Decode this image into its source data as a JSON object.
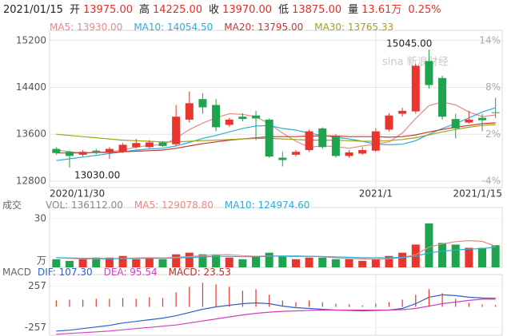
{
  "header": {
    "date": "2021/01/15",
    "value_color": "#e0302a",
    "items": [
      {
        "label": "开",
        "value": "13975.00"
      },
      {
        "label": "高",
        "value": "14225.00"
      },
      {
        "label": "收",
        "value": "13970.00"
      },
      {
        "label": "低",
        "value": "13875.00"
      },
      {
        "label": "量",
        "value": "13.61万"
      }
    ],
    "change": "0.25%"
  },
  "watermark": "sina 新浪财经",
  "up_color": "#e8352d",
  "down_color": "#1ea34e",
  "chart_data": [
    {
      "type": "candlestick",
      "categories": [
        "2020/11/30",
        null,
        null,
        null,
        null,
        null,
        null,
        null,
        null,
        null,
        null,
        null,
        null,
        null,
        null,
        null,
        null,
        null,
        null,
        null,
        null,
        null,
        null,
        null,
        "2021/1",
        null,
        null,
        null,
        null,
        null,
        null,
        null,
        null,
        "2021/1/15"
      ],
      "open": [
        13350,
        13300,
        13250,
        13320,
        13300,
        13300,
        13380,
        13380,
        13460,
        13430,
        13850,
        14200,
        14100,
        13760,
        13900,
        13920,
        13850,
        13200,
        13250,
        13330,
        13700,
        13560,
        13230,
        13270,
        13320,
        13680,
        13950,
        13990,
        14850,
        14560,
        13860,
        13800,
        13880,
        13975
      ],
      "close": [
        13280,
        13230,
        13300,
        13300,
        13350,
        13420,
        13450,
        13460,
        13400,
        13900,
        14130,
        14060,
        13720,
        13850,
        13860,
        13870,
        13220,
        13160,
        13300,
        13650,
        13380,
        13230,
        13290,
        13330,
        13650,
        13920,
        14000,
        14770,
        14440,
        13900,
        13700,
        13850,
        13840,
        13970
      ],
      "high": [
        13380,
        13320,
        13330,
        13350,
        13380,
        13450,
        13520,
        13500,
        13480,
        14100,
        14330,
        14300,
        14200,
        13880,
        13960,
        14000,
        13870,
        13300,
        13330,
        13680,
        13720,
        13600,
        13330,
        13380,
        13700,
        13960,
        14050,
        14800,
        15045,
        14600,
        13950,
        14000,
        13950,
        14225
      ],
      "low": [
        13250,
        13030,
        13220,
        13260,
        13180,
        13280,
        13360,
        13360,
        13380,
        13400,
        13800,
        13950,
        13650,
        13730,
        13820,
        13500,
        13200,
        13050,
        13220,
        13300,
        13350,
        13200,
        13200,
        13250,
        13300,
        13650,
        13900,
        13950,
        14380,
        13850,
        13530,
        13780,
        13650,
        13875
      ],
      "max_label": "15045.00",
      "min_label": "13030.00",
      "series": [
        {
          "name": "MA5: 13930.00",
          "type": "line",
          "color": "#e58a8a",
          "values": [
            13330,
            13300,
            13280,
            13290,
            13300,
            13330,
            13380,
            13410,
            13420,
            13530,
            13680,
            13790,
            13880,
            13950,
            13940,
            13900,
            13780,
            13620,
            13480,
            13380,
            13400,
            13390,
            13360,
            13400,
            13430,
            13470,
            13620,
            13870,
            14090,
            14150,
            14100,
            13980,
            13900,
            13930
          ]
        },
        {
          "name": "MA10: 14054.50",
          "type": "line",
          "color": "#2aaed6",
          "values": [
            13150,
            13180,
            13210,
            13240,
            13270,
            13300,
            13330,
            13350,
            13360,
            13400,
            13460,
            13530,
            13580,
            13640,
            13700,
            13740,
            13750,
            13700,
            13670,
            13620,
            13580,
            13550,
            13520,
            13480,
            13430,
            13420,
            13430,
            13490,
            13600,
            13700,
            13780,
            13880,
            13980,
            14054.5
          ]
        },
        {
          "name": "MA20: 13795.00",
          "type": "line",
          "color": "#c8372f",
          "values": [
            13280,
            13280,
            13280,
            13290,
            13290,
            13300,
            13310,
            13320,
            13330,
            13360,
            13400,
            13440,
            13470,
            13500,
            13520,
            13540,
            13560,
            13560,
            13560,
            13570,
            13570,
            13570,
            13560,
            13560,
            13560,
            13550,
            13560,
            13590,
            13640,
            13680,
            13720,
            13750,
            13780,
            13795
          ]
        },
        {
          "name": "MA30: 13765.33",
          "type": "line",
          "color": "#a3a21c",
          "values": [
            13600,
            13580,
            13560,
            13540,
            13520,
            13500,
            13490,
            13480,
            13470,
            13470,
            13480,
            13490,
            13500,
            13510,
            13520,
            13530,
            13530,
            13520,
            13510,
            13500,
            13500,
            13500,
            13490,
            13480,
            13480,
            13490,
            13510,
            13540,
            13590,
            13640,
            13680,
            13720,
            13750,
            13765.33
          ]
        }
      ],
      "ylim": [
        12690,
        15320
      ],
      "yticks": [
        15200,
        14400,
        13600,
        12800
      ],
      "y2lim": [
        -4.8,
        14.9
      ],
      "y2ticks": [
        {
          "value": 14,
          "label": "14%"
        },
        {
          "value": 8,
          "label": "8%"
        },
        {
          "value": 2,
          "label": "2%"
        },
        {
          "value": -4,
          "label": "-4%"
        }
      ],
      "grid": true
    },
    {
      "type": "combo",
      "title": "成交",
      "y_unit": "万",
      "series": [
        {
          "name": "VOL: 136112.00",
          "type": "bar",
          "color": "#888888",
          "values": [
            5,
            4,
            5,
            6,
            6,
            7,
            5,
            6,
            5,
            8,
            9,
            8,
            8,
            6,
            5,
            7,
            9,
            7,
            5,
            6,
            6,
            5,
            5,
            4,
            5,
            7,
            9,
            14,
            27,
            15,
            14,
            12,
            12,
            13.6112
          ]
        },
        {
          "name": "MA5: 129078.80",
          "type": "line",
          "color": "#e58a8a",
          "values": [
            6,
            5.5,
            5.2,
            5.2,
            5.2,
            5.6,
            5.8,
            6,
            5.8,
            6.2,
            6.6,
            7.2,
            7.6,
            7.8,
            7.2,
            6.8,
            7,
            6.8,
            6.6,
            6.8,
            6.6,
            5.8,
            5.4,
            5.2,
            5,
            5.2,
            6,
            7.8,
            12.4,
            14.4,
            15.8,
            16.4,
            16,
            12.90788
          ]
        },
        {
          "name": "MA10: 124974.60",
          "type": "line",
          "color": "#2aaed6",
          "values": [
            6,
            5.8,
            5.6,
            5.5,
            5.4,
            5.4,
            5.5,
            5.6,
            5.6,
            5.7,
            6.1,
            6.4,
            6.7,
            6.7,
            6.5,
            6.5,
            6.8,
            7,
            7,
            6.8,
            6.6,
            6.4,
            6.2,
            5.9,
            5.9,
            5.9,
            6.2,
            6.8,
            8.9,
            9.9,
            10.6,
            11.2,
            11.5,
            12.49746
          ]
        }
      ],
      "ylim": [
        0,
        34.8
      ],
      "yticks": [
        30
      ],
      "grid": false
    },
    {
      "type": "combo",
      "title": "MACD",
      "series": [
        {
          "name": "DIF: 107.30",
          "type": "line",
          "color": "#2f5fc8",
          "values": [
            -300,
            -290,
            -270,
            -250,
            -230,
            -200,
            -180,
            -160,
            -140,
            -110,
            -70,
            -30,
            0,
            20,
            40,
            50,
            40,
            10,
            -10,
            -20,
            -30,
            -40,
            -45,
            -50,
            -45,
            -40,
            -20,
            40,
            120,
            150,
            140,
            120,
            110,
            107.3
          ]
        },
        {
          "name": "DEA: 95.54",
          "type": "line",
          "color": "#d23fc0",
          "values": [
            -340,
            -330,
            -320,
            -310,
            -300,
            -285,
            -270,
            -255,
            -240,
            -225,
            -200,
            -175,
            -150,
            -125,
            -100,
            -80,
            -65,
            -55,
            -50,
            -45,
            -40,
            -40,
            -40,
            -40,
            -40,
            -40,
            -35,
            -20,
            10,
            40,
            60,
            80,
            95,
            95.54
          ]
        },
        {
          "name": "MACD: 23.53",
          "type": "bar",
          "color": "#b8322a",
          "values": [
            80,
            90,
            90,
            100,
            100,
            110,
            100,
            120,
            110,
            180,
            250,
            300,
            280,
            250,
            200,
            220,
            150,
            80,
            60,
            80,
            60,
            40,
            30,
            20,
            40,
            60,
            90,
            150,
            220,
            170,
            100,
            50,
            30,
            23.53
          ]
        }
      ],
      "ylim": [
        -352,
        362
      ],
      "yticks": [
        257,
        -257
      ],
      "grid": false
    }
  ]
}
